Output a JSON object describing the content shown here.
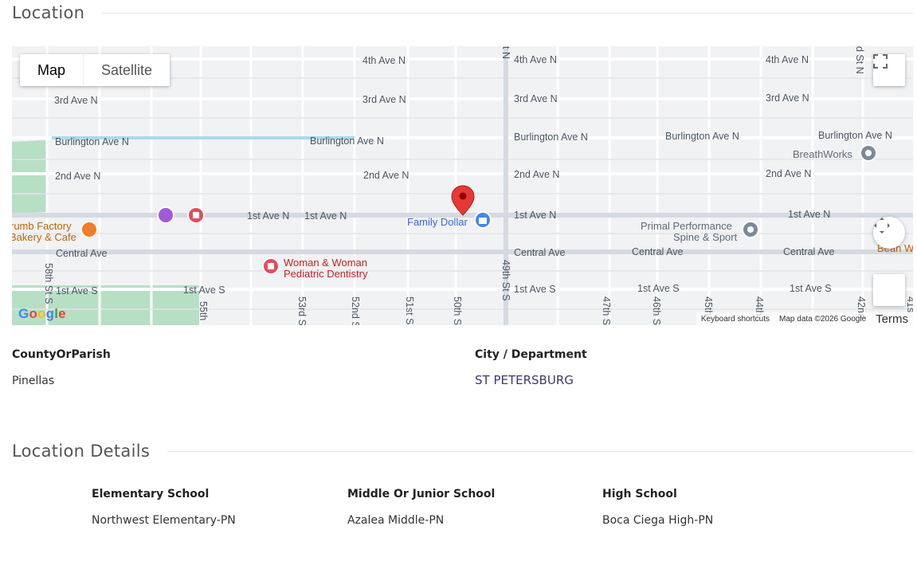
{
  "location": {
    "title": "Location",
    "map": {
      "map_type": {
        "map_label": "Map",
        "satellite_label": "Satellite",
        "selected": "Map"
      },
      "google_logo": "Google",
      "attribution": {
        "shortcuts": "Keyboard shortcuts",
        "data": "Map data ©2026 Google",
        "terms": "Terms"
      },
      "street_labels": [
        "4th Ave N",
        "4th Ave N",
        "4th Ave N",
        "3rd Ave N",
        "3rd Ave N",
        "3rd Ave N",
        "3rd Ave N",
        "Burlington Ave N",
        "Burlington Ave N",
        "Burlington Ave N",
        "Burlington Ave N",
        "Burlington Ave N",
        "2nd Ave N",
        "2nd Ave N",
        "2nd Ave N",
        "2nd Ave N",
        "1st Ave N",
        "1st Ave N",
        "1st Ave N",
        "1st Ave N",
        "Central Ave",
        "Central Ave",
        "Central Ave",
        "Central Ave",
        "1st Ave S",
        "1st Ave S",
        "1st Ave S",
        "1st Ave S",
        "1st Ave S",
        "58th St S",
        "55th",
        "53rd S",
        "52nd S",
        "51st S",
        "50th S",
        "49th St S",
        "47th S",
        "46th S",
        "45th",
        "44th",
        "42nd",
        "41s",
        "d St N",
        "t N"
      ],
      "places": [
        {
          "name": "Family Dollar",
          "icon": "shopping-bag-icon",
          "color": "#4285f4"
        },
        {
          "name": "BreathWorks",
          "icon": "place-pin-icon",
          "color": "#7b8a9a"
        },
        {
          "name": "Primal Performance Spine & Sport",
          "icon": "place-pin-icon",
          "color": "#7b8a9a"
        },
        {
          "name": "Woman & Woman Pediatric Dentistry",
          "icon": "medical-icon",
          "color": "#e94a5a"
        },
        {
          "name": "rumb Factory Bakery & Cafe",
          "icon": "restaurant-icon",
          "color": "#f07d2a"
        },
        {
          "name": "Bean W",
          "icon": "",
          "color": "#f07d2a"
        }
      ],
      "marker_color": "#e53935"
    },
    "county_label": "CountyOrParish",
    "county_value": "Pinellas",
    "city_label": "City / Department",
    "city_value": "ST PETERSBURG"
  },
  "details": {
    "title": "Location Details",
    "elementary_label": "Elementary School",
    "elementary_value": "Northwest Elementary-PN",
    "middle_label": "Middle Or Junior School",
    "middle_value": "Azalea Middle-PN",
    "high_label": "High School",
    "high_value": "Boca Ciega High-PN"
  }
}
